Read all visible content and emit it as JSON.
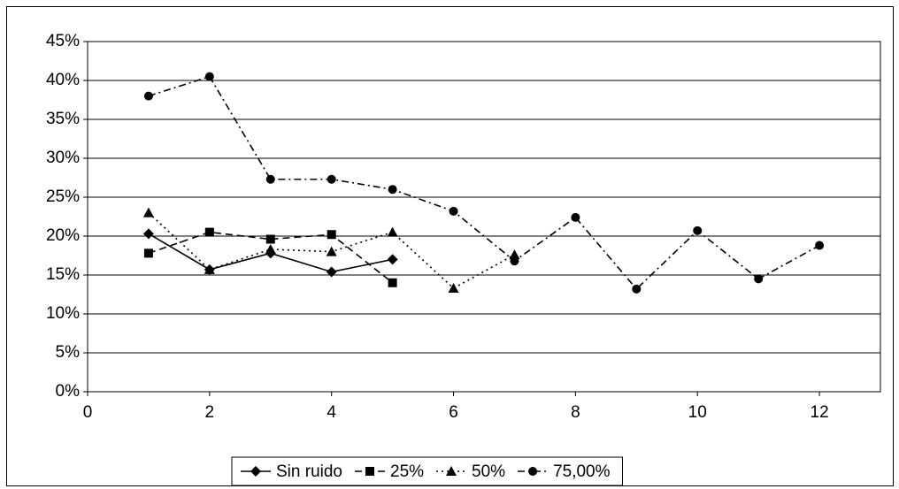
{
  "chart_data": {
    "type": "line",
    "x": [
      1,
      2,
      3,
      4,
      5,
      6,
      7,
      8,
      9,
      10,
      11,
      12
    ],
    "series": [
      {
        "name": "Sin ruido",
        "color": "#000000",
        "marker": "diamond",
        "dash": "none",
        "values": [
          20.3,
          15.7,
          17.8,
          15.4,
          17.0,
          null,
          null,
          null,
          null,
          null,
          null,
          null
        ]
      },
      {
        "name": "25%",
        "color": "#000000",
        "marker": "square",
        "dash": "8 5",
        "values": [
          17.8,
          20.5,
          19.6,
          20.2,
          14.0,
          null,
          null,
          null,
          null,
          null,
          null,
          null
        ]
      },
      {
        "name": "50%",
        "color": "#000000",
        "marker": "triangle",
        "dash": "2 4",
        "values": [
          23.0,
          15.7,
          18.3,
          18.0,
          20.5,
          13.3,
          17.6,
          null,
          null,
          null,
          null,
          null
        ]
      },
      {
        "name": "75,00%",
        "color": "#000000",
        "marker": "circle",
        "dash": "8 4 2 4",
        "values": [
          38.0,
          40.5,
          27.3,
          27.3,
          26.0,
          23.2,
          16.8,
          22.4,
          13.2,
          20.7,
          14.5,
          18.8
        ]
      }
    ],
    "xlim": [
      0,
      13
    ],
    "xticks": [
      0,
      2,
      4,
      6,
      8,
      10,
      12
    ],
    "ylim": [
      0,
      45
    ],
    "yticks": [
      {
        "value": 0,
        "label": "0%"
      },
      {
        "value": 5,
        "label": "5%"
      },
      {
        "value": 10,
        "label": "10%"
      },
      {
        "value": 15,
        "label": "15%"
      },
      {
        "value": 20,
        "label": "20%"
      },
      {
        "value": 25,
        "label": "25%"
      },
      {
        "value": 30,
        "label": "30%"
      },
      {
        "value": 35,
        "label": "35%"
      },
      {
        "value": 40,
        "label": "40%"
      },
      {
        "value": 45,
        "label": "45%"
      }
    ],
    "grid": true,
    "legend": "bottom"
  }
}
